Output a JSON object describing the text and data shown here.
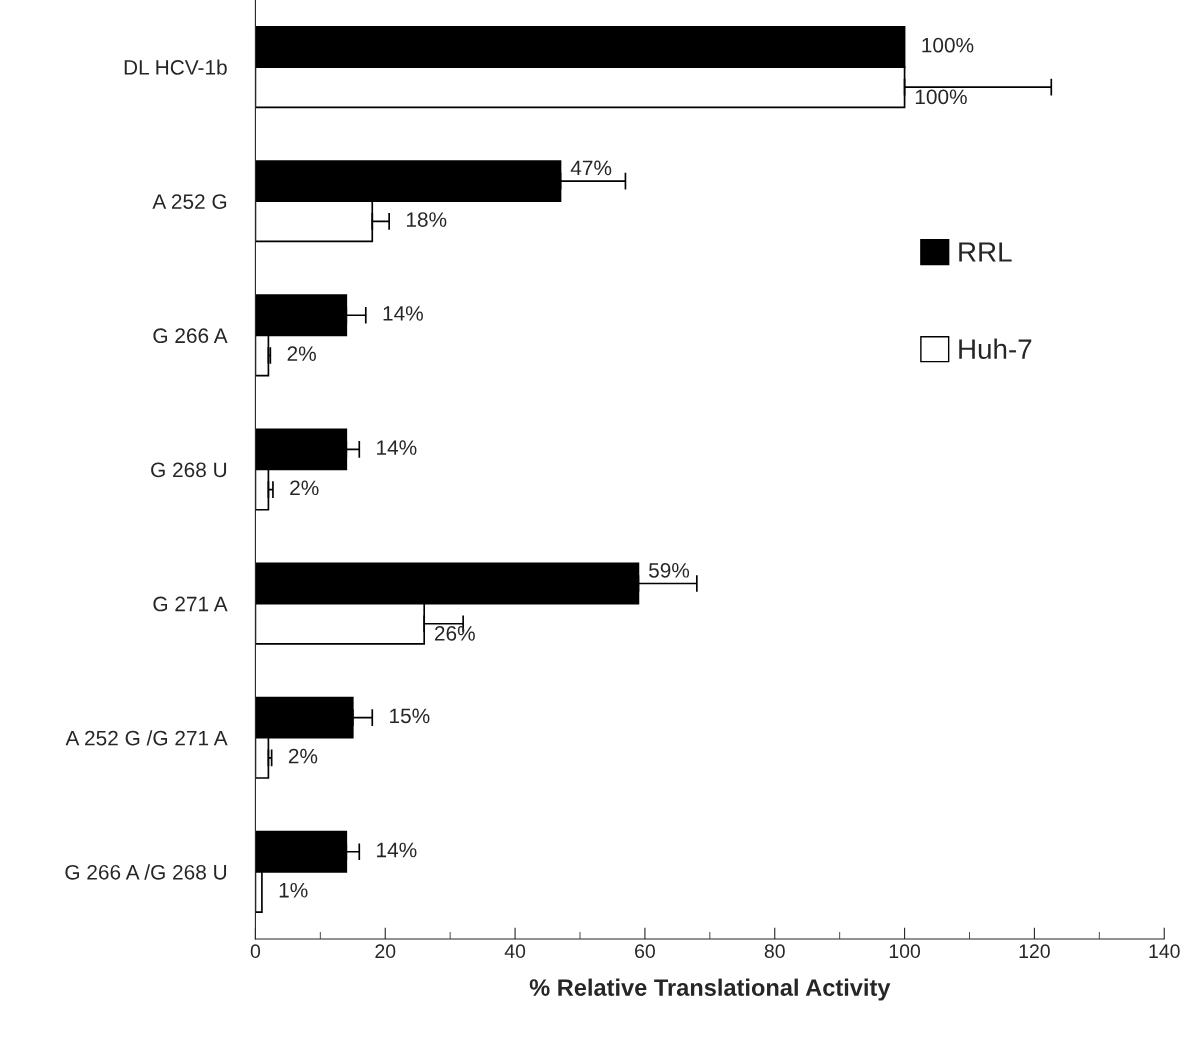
{
  "chart_data": {
    "type": "bar",
    "orientation": "horizontal",
    "xlabel": "% Relative Translational Activity",
    "categories": [
      "DL HCV-1b",
      "A 252 G",
      "G 266 A",
      "G 268 U",
      "G 271 A",
      "A 252 G /G 271 A",
      "G 266 A /G 268 U"
    ],
    "series": [
      {
        "name": "RRL",
        "color": "#000000",
        "values": [
          100,
          47,
          14,
          14,
          59,
          15,
          14
        ],
        "errors": [
          null,
          10,
          3,
          2,
          9,
          3,
          2
        ],
        "value_labels": [
          "100%",
          "47%",
          "14%",
          "14%",
          "59%",
          "15%",
          "14%"
        ]
      },
      {
        "name": "Huh-7",
        "color": "#ffffff",
        "values": [
          100,
          18,
          2,
          2,
          26,
          2,
          1
        ],
        "errors": [
          22.6,
          2.6,
          0.3,
          0.7,
          6,
          0.5,
          null
        ],
        "value_labels": [
          "100%",
          "18%",
          "2%",
          "2%",
          "26%",
          "2%",
          "1%"
        ]
      }
    ],
    "xlim": [
      0,
      140
    ],
    "xticks": [
      0,
      20,
      40,
      60,
      80,
      100,
      120,
      140
    ],
    "legend": "top right",
    "grid": false
  }
}
